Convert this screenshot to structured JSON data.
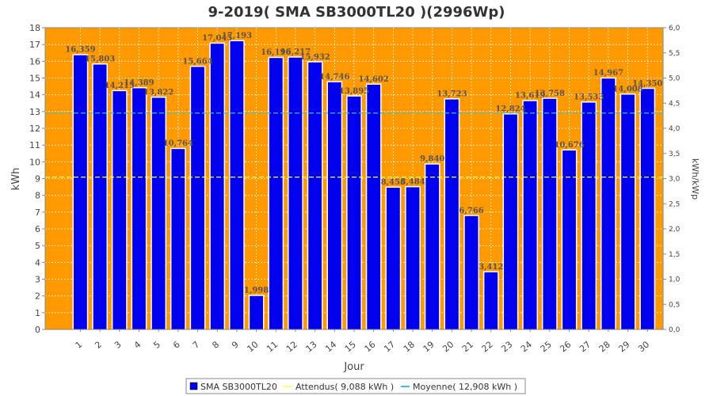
{
  "chart_data": {
    "type": "bar",
    "title": "9-2019( SMA SB3000TL20 )(2996Wp)",
    "xlabel": "Jour",
    "ylabel": "kWh",
    "ylabel_right": "kWh/kWp",
    "ylim": [
      0,
      18
    ],
    "ylim_right": [
      0,
      6
    ],
    "y_ticks": [
      "0",
      "1",
      "2",
      "3",
      "4",
      "5",
      "6",
      "7",
      "8",
      "9",
      "10",
      "11",
      "12",
      "13",
      "14",
      "15",
      "16",
      "17",
      "18"
    ],
    "y_ticks_right": [
      "0,0",
      "0,5",
      "1,0",
      "1,5",
      "2,0",
      "2,5",
      "3,0",
      "3,5",
      "4,0",
      "4,5",
      "5,0",
      "5,5",
      "6,0"
    ],
    "categories": [
      "1",
      "2",
      "3",
      "4",
      "5",
      "6",
      "7",
      "8",
      "9",
      "10",
      "11",
      "12",
      "13",
      "14",
      "15",
      "16",
      "17",
      "18",
      "19",
      "20",
      "21",
      "22",
      "23",
      "24",
      "25",
      "26",
      "27",
      "28",
      "29",
      "30"
    ],
    "series": [
      {
        "name": "SMA SB3000TL20",
        "color": "#0000ee",
        "values": [
          16.359,
          15.803,
          14.215,
          14.389,
          13.822,
          10.764,
          15.664,
          17.045,
          17.193,
          1.998,
          16.196,
          16.217,
          15.932,
          14.746,
          13.895,
          14.602,
          8.455,
          8.484,
          9.84,
          13.723,
          6.766,
          3.412,
          12.824,
          13.619,
          13.758,
          10.676,
          13.533,
          14.967,
          14.008,
          14.35
        ],
        "labels": [
          "16,359",
          "15,803",
          "14,215",
          "14,389",
          "13,822",
          "10,764",
          "15,664",
          "17,045",
          "17,193",
          "1,998",
          "16,196",
          "16,217",
          "15,932",
          "14,746",
          "13,895",
          "14,602",
          "8,455",
          "8,484",
          "9,840",
          "13,723",
          "6,766",
          "3,412",
          "12,824",
          "13,619",
          "13,758",
          "10,676",
          "13,533",
          "14,967",
          "14,008",
          "14,350"
        ]
      }
    ],
    "reference_lines": [
      {
        "name": "Attendus",
        "value": 9.088,
        "color": "#ffff66"
      },
      {
        "name": "Moyenne",
        "value": 12.908,
        "color": "#40c0c0"
      }
    ],
    "legend": {
      "placement": "bottom",
      "entries": [
        "SMA SB3000TL20",
        "Attendus( 9,088 kWh )",
        "Moyenne( 12,908 kWh )"
      ]
    },
    "plot_background": "#ff9900",
    "grid": true
  }
}
